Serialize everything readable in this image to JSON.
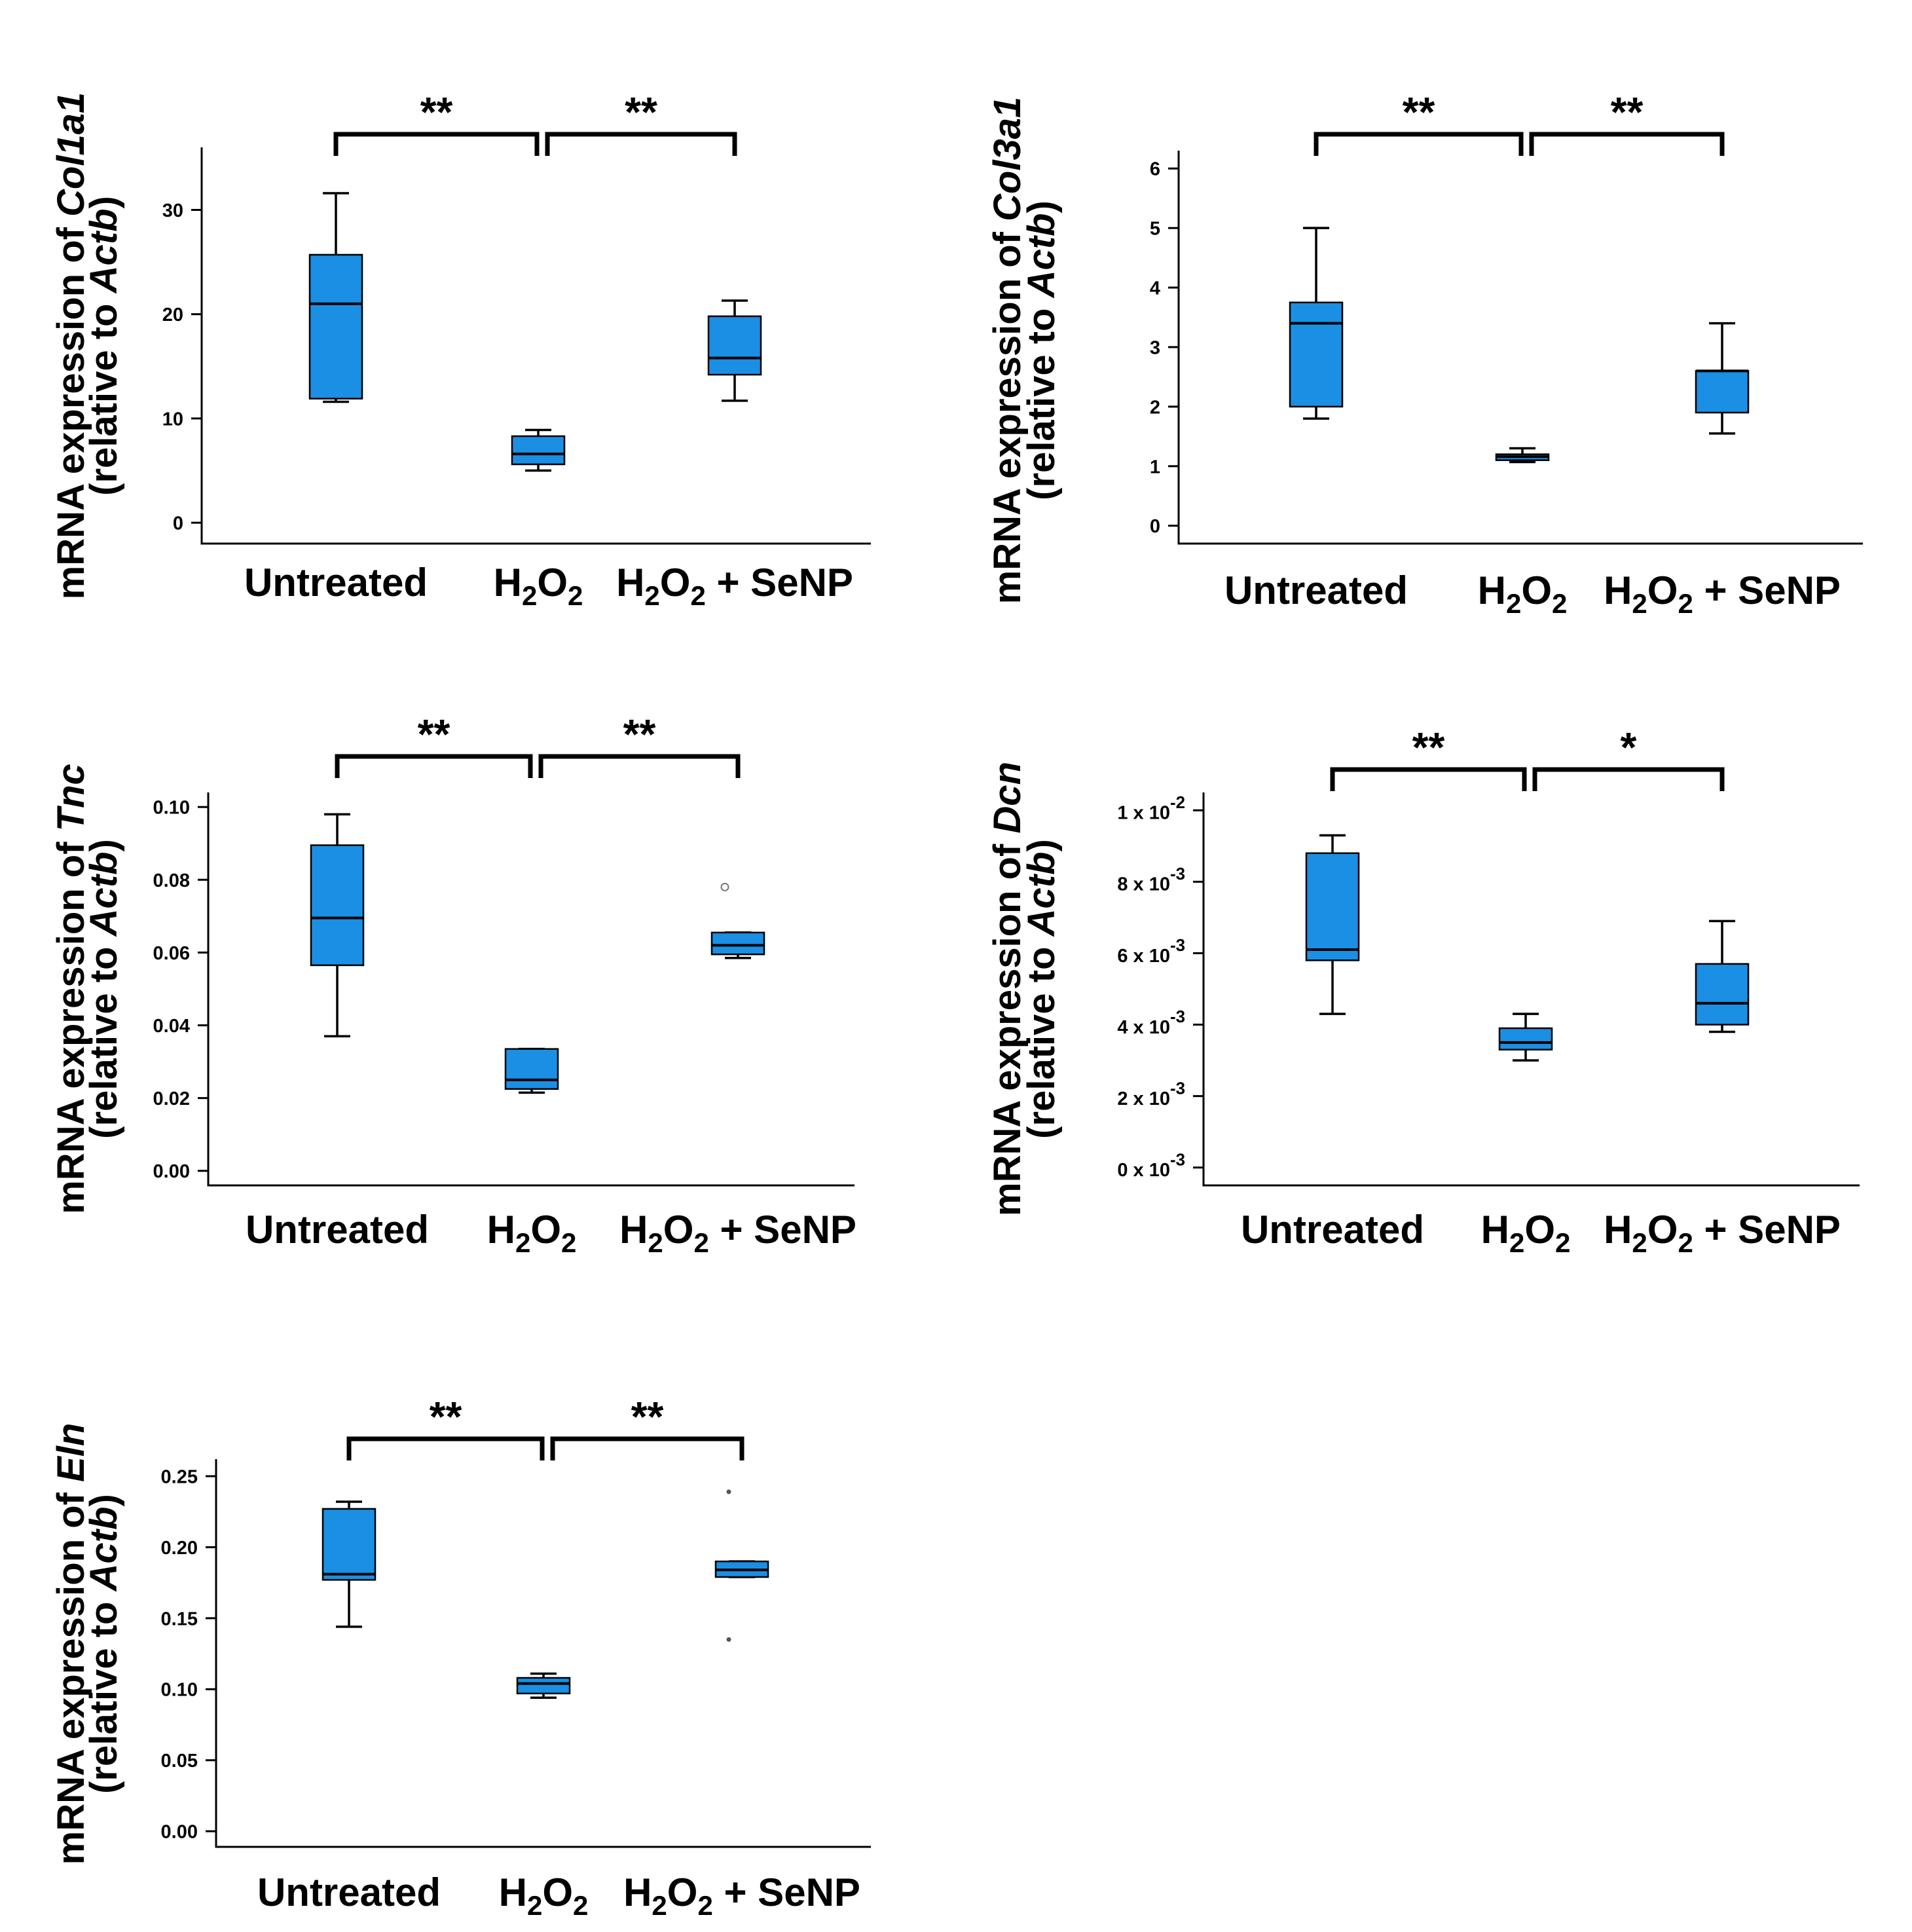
{
  "colors": {
    "box_fill": "#1a8fe3",
    "stroke": "#000000"
  },
  "chart_data": [
    {
      "type": "box",
      "gene": "Col1a1",
      "ylabel_prefix": "mRNA expression of ",
      "ylabel_line2_prefix": "(relative to ",
      "ylabel_ref": "Actb",
      "ylabel_line2_suffix": ")",
      "ylim": [
        -2,
        36
      ],
      "ticks": [
        {
          "value": 0,
          "label": "0"
        },
        {
          "value": 10,
          "label": "10"
        },
        {
          "value": 20,
          "label": "20"
        },
        {
          "value": 30,
          "label": "30"
        }
      ],
      "categories": [
        {
          "label": "Untreated",
          "sub": "",
          "tail": ""
        },
        {
          "label": "H",
          "sub": "2",
          "mid": "O",
          "sub2": "2",
          "tail": ""
        },
        {
          "label": "H",
          "sub": "2",
          "mid": "O",
          "sub2": "2",
          "tail": " + SeNP"
        }
      ],
      "boxes": [
        {
          "min": 11.6,
          "q1": 11.9,
          "median": 21.0,
          "q3": 25.7,
          "max": 31.6,
          "outliers": []
        },
        {
          "min": 5.0,
          "q1": 5.6,
          "median": 6.6,
          "q3": 8.3,
          "max": 8.9,
          "outliers": []
        },
        {
          "min": 11.7,
          "q1": 14.2,
          "median": 15.8,
          "q3": 19.8,
          "max": 21.3,
          "outliers": []
        }
      ],
      "significance": [
        {
          "from": 0,
          "to": 1,
          "label": "**"
        },
        {
          "from": 1,
          "to": 2,
          "label": "**"
        }
      ]
    },
    {
      "type": "box",
      "gene": "Col3a1",
      "ylabel_prefix": "mRNA expression of ",
      "ylabel_line2_prefix": "(relative to ",
      "ylabel_ref": "Actb",
      "ylabel_line2_suffix": ")",
      "ylim": [
        -0.3,
        6.3
      ],
      "ticks": [
        {
          "value": 0,
          "label": "0"
        },
        {
          "value": 1,
          "label": "1"
        },
        {
          "value": 2,
          "label": "2"
        },
        {
          "value": 3,
          "label": "3"
        },
        {
          "value": 4,
          "label": "4"
        },
        {
          "value": 5,
          "label": "5"
        },
        {
          "value": 6,
          "label": "6"
        }
      ],
      "categories": [
        {
          "label": "Untreated",
          "sub": "",
          "tail": ""
        },
        {
          "label": "H",
          "sub": "2",
          "mid": "O",
          "sub2": "2",
          "tail": ""
        },
        {
          "label": "H",
          "sub": "2",
          "mid": "O",
          "sub2": "2",
          "tail": " + SeNP"
        }
      ],
      "boxes": [
        {
          "min": 1.8,
          "q1": 2.0,
          "median": 3.4,
          "q3": 3.75,
          "max": 5.0,
          "outliers": []
        },
        {
          "min": 1.07,
          "q1": 1.1,
          "median": 1.16,
          "q3": 1.2,
          "max": 1.3,
          "outliers": []
        },
        {
          "min": 1.55,
          "q1": 1.9,
          "median": 2.6,
          "q3": 2.6,
          "max": 3.4,
          "outliers": []
        }
      ],
      "significance": [
        {
          "from": 0,
          "to": 1,
          "label": "**"
        },
        {
          "from": 1,
          "to": 2,
          "label": "**"
        }
      ]
    },
    {
      "type": "box",
      "gene": "Tnc",
      "ylabel_prefix": "mRNA expression of ",
      "ylabel_line2_prefix": "(relative to ",
      "ylabel_ref": "Actb",
      "ylabel_line2_suffix": ")",
      "ylim": [
        -0.004,
        0.104
      ],
      "ticks": [
        {
          "value": 0,
          "label": "0.00"
        },
        {
          "value": 0.02,
          "label": "0.02"
        },
        {
          "value": 0.04,
          "label": "0.04"
        },
        {
          "value": 0.06,
          "label": "0.06"
        },
        {
          "value": 0.08,
          "label": "0.08"
        },
        {
          "value": 0.1,
          "label": "0.10"
        }
      ],
      "categories": [
        {
          "label": "Untreated",
          "sub": "",
          "tail": ""
        },
        {
          "label": "H",
          "sub": "2",
          "mid": "O",
          "sub2": "2",
          "tail": ""
        },
        {
          "label": "H",
          "sub": "2",
          "mid": "O",
          "sub2": "2",
          "tail": " + SeNP"
        }
      ],
      "boxes": [
        {
          "min": 0.037,
          "q1": 0.0565,
          "median": 0.0695,
          "q3": 0.0895,
          "max": 0.098,
          "outliers": []
        },
        {
          "min": 0.0215,
          "q1": 0.0225,
          "median": 0.025,
          "q3": 0.0335,
          "max": 0.0335,
          "outliers": []
        },
        {
          "min": 0.0585,
          "q1": 0.0595,
          "median": 0.062,
          "q3": 0.0655,
          "max": 0.0655,
          "outliers": [
            0.078
          ]
        }
      ],
      "significance": [
        {
          "from": 0,
          "to": 1,
          "label": "**"
        },
        {
          "from": 1,
          "to": 2,
          "label": "**"
        }
      ]
    },
    {
      "type": "box",
      "gene": "Dcn",
      "ylabel_prefix": "mRNA expression of ",
      "ylabel_line2_prefix": "(relative to ",
      "ylabel_ref": "Actb",
      "ylabel_line2_suffix": ")",
      "ylim": [
        -0.0005,
        0.0105
      ],
      "ticks": [
        {
          "value": 0,
          "label": "0 x 10",
          "exp": "-3"
        },
        {
          "value": 0.002,
          "label": "2 x 10",
          "exp": "-3"
        },
        {
          "value": 0.004,
          "label": "4 x 10",
          "exp": "-3"
        },
        {
          "value": 0.006,
          "label": "6 x 10",
          "exp": "-3"
        },
        {
          "value": 0.008,
          "label": "8 x 10",
          "exp": "-3"
        },
        {
          "value": 0.01,
          "label": "1 x 10",
          "exp": "-2"
        }
      ],
      "categories": [
        {
          "label": "Untreated",
          "sub": "",
          "tail": ""
        },
        {
          "label": "H",
          "sub": "2",
          "mid": "O",
          "sub2": "2",
          "tail": ""
        },
        {
          "label": "H",
          "sub": "2",
          "mid": "O",
          "sub2": "2",
          "tail": " + SeNP"
        }
      ],
      "boxes": [
        {
          "min": 0.0043,
          "q1": 0.0058,
          "median": 0.0061,
          "q3": 0.0088,
          "max": 0.0093,
          "outliers": []
        },
        {
          "min": 0.003,
          "q1": 0.0033,
          "median": 0.0035,
          "q3": 0.0039,
          "max": 0.0043,
          "outliers": []
        },
        {
          "min": 0.0038,
          "q1": 0.004,
          "median": 0.0046,
          "q3": 0.0057,
          "max": 0.0069,
          "outliers": []
        }
      ],
      "significance": [
        {
          "from": 0,
          "to": 1,
          "label": "**"
        },
        {
          "from": 1,
          "to": 2,
          "label": "*"
        }
      ]
    },
    {
      "type": "box",
      "gene": "Eln",
      "ylabel_prefix": "mRNA expression of ",
      "ylabel_line2_prefix": "(relative to ",
      "ylabel_ref": "Actb",
      "ylabel_line2_suffix": ")",
      "ylim": [
        -0.011,
        0.262
      ],
      "ticks": [
        {
          "value": 0,
          "label": "0.00"
        },
        {
          "value": 0.05,
          "label": "0.05"
        },
        {
          "value": 0.1,
          "label": "0.10"
        },
        {
          "value": 0.15,
          "label": "0.15"
        },
        {
          "value": 0.2,
          "label": "0.20"
        },
        {
          "value": 0.25,
          "label": "0.25"
        }
      ],
      "categories": [
        {
          "label": "Untreated",
          "sub": "",
          "tail": ""
        },
        {
          "label": "H",
          "sub": "2",
          "mid": "O",
          "sub2": "2",
          "tail": ""
        },
        {
          "label": "H",
          "sub": "2",
          "mid": "O",
          "sub2": "2",
          "tail": " + SeNP"
        }
      ],
      "boxes": [
        {
          "min": 0.144,
          "q1": 0.177,
          "median": 0.181,
          "q3": 0.227,
          "max": 0.232,
          "outliers": []
        },
        {
          "min": 0.094,
          "q1": 0.097,
          "median": 0.104,
          "q3": 0.108,
          "max": 0.111,
          "outliers": []
        },
        {
          "min": 0.179,
          "q1": 0.179,
          "median": 0.184,
          "q3": 0.19,
          "max": 0.19,
          "outliers": [
            0.239,
            0.135
          ]
        }
      ],
      "significance": [
        {
          "from": 0,
          "to": 1,
          "label": "**"
        },
        {
          "from": 1,
          "to": 2,
          "label": "**"
        }
      ]
    }
  ]
}
